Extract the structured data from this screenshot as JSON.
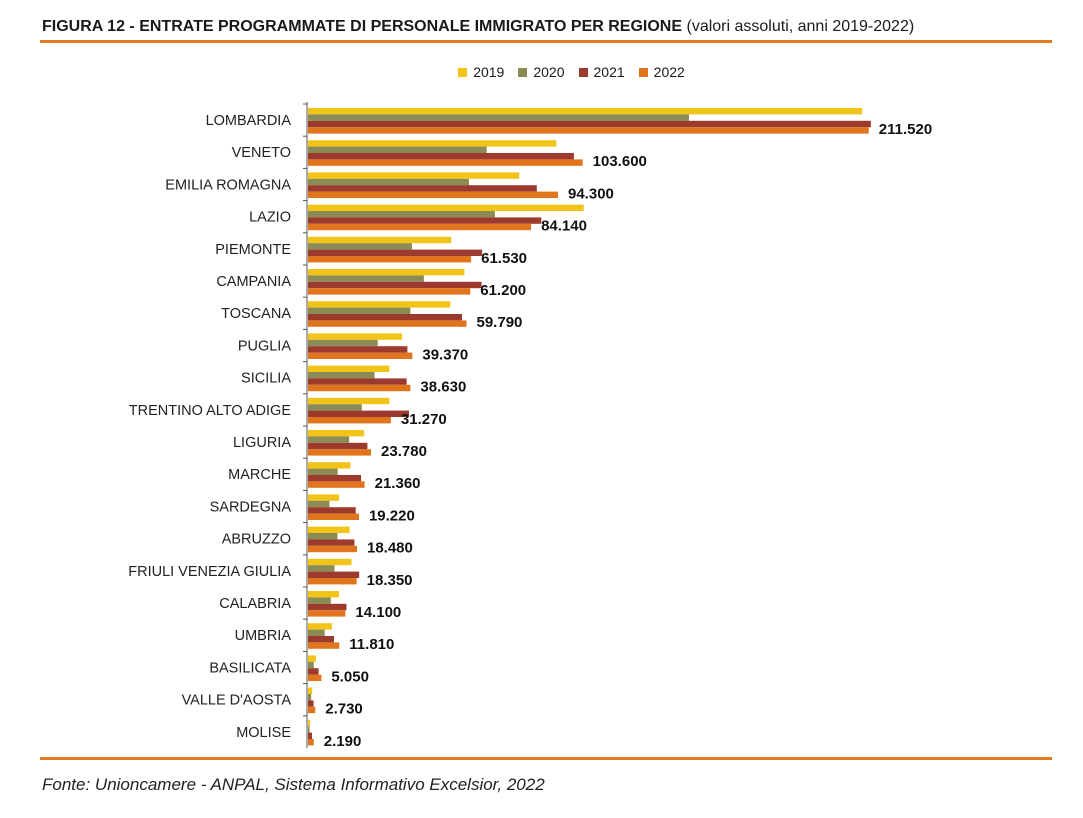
{
  "header": {
    "figure_label": "FIGURA 12 - ENTRATE PROGRAMMATE DI PERSONALE IMMIGRATO PER REGIONE",
    "figure_note": "(valori assoluti, anni 2019-2022)"
  },
  "footer": {
    "source": "Fonte: Unioncamere - ANPAL, Sistema Informativo Excelsior, 2022"
  },
  "colors": {
    "accent_rule": "#e07b1f",
    "s2019": "#f2c418",
    "s2020": "#8b8b56",
    "s2021": "#9c3a2e",
    "s2022": "#e0751e"
  },
  "chart_data": {
    "type": "bar",
    "orientation": "horizontal",
    "title": "",
    "xlabel": "",
    "ylabel": "",
    "xlim": [
      0,
      215000
    ],
    "grid": false,
    "legend_position": "top",
    "categories": [
      "LOMBARDIA",
      "VENETO",
      "EMILIA ROMAGNA",
      "LAZIO",
      "PIEMONTE",
      "CAMPANIA",
      "TOSCANA",
      "PUGLIA",
      "SICILIA",
      "TRENTINO ALTO ADIGE",
      "LIGURIA",
      "MARCHE",
      "SARDEGNA",
      "ABRUZZO",
      "FRIULI VENEZIA GIULIA",
      "CALABRIA",
      "UMBRIA",
      "BASILICATA",
      "VALLE D'AOSTA",
      "MOLISE"
    ],
    "series": [
      {
        "name": "2019",
        "values": [
          209000,
          93700,
          79700,
          104000,
          54000,
          59000,
          53700,
          35500,
          30700,
          30700,
          21200,
          16000,
          11700,
          15700,
          16400,
          11700,
          9000,
          3000,
          1600,
          800
        ]
      },
      {
        "name": "2020",
        "values": [
          143700,
          67400,
          60700,
          70500,
          39200,
          43700,
          38600,
          26300,
          25100,
          20300,
          15500,
          11200,
          8100,
          11100,
          10000,
          8600,
          6300,
          2200,
          1200,
          600
        ]
      },
      {
        "name": "2021",
        "values": [
          212300,
          100300,
          86300,
          88000,
          65700,
          65500,
          58100,
          37500,
          37200,
          38100,
          22400,
          20000,
          18000,
          17500,
          19300,
          14500,
          9800,
          4000,
          2100,
          1500
        ]
      },
      {
        "name": "2022",
        "values": [
          211520,
          103600,
          94300,
          84140,
          61530,
          61200,
          59790,
          39370,
          38630,
          31270,
          23780,
          21360,
          19220,
          18480,
          18350,
          14100,
          11810,
          5050,
          2730,
          2190
        ]
      }
    ],
    "data_labels": [
      "211.520",
      "103.600",
      "94.300",
      "84.140",
      "61.530",
      "61.200",
      "59.790",
      "39.370",
      "38.630",
      "31.270",
      "23.780",
      "21.360",
      "19.220",
      "18.480",
      "18.350",
      "14.100",
      "11.810",
      "5.050",
      "2.730",
      "2.190"
    ]
  }
}
